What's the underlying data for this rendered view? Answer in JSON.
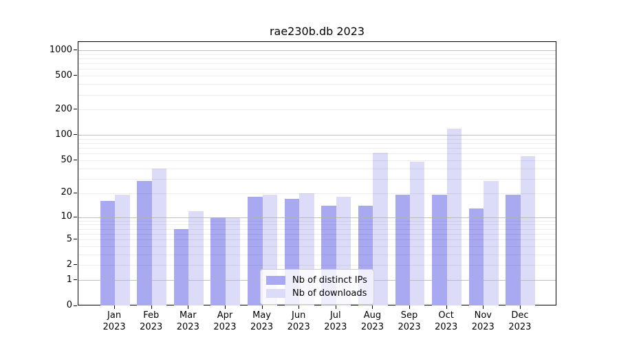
{
  "title": "rae230b.db 2023",
  "legend": {
    "position": "lower center",
    "items": [
      {
        "label": "Nb of distinct IPs",
        "color": "#a9a9f1"
      },
      {
        "label": "Nb of downloads",
        "color": "#dcdcf8"
      }
    ]
  },
  "axes": {
    "y_tick_labels": [
      "0",
      "1",
      "2",
      "5",
      "10",
      "20",
      "50",
      "100",
      "200",
      "500",
      "1000"
    ],
    "x_tick_months": [
      "Jan",
      "Feb",
      "Mar",
      "Apr",
      "May",
      "Jun",
      "Jul",
      "Aug",
      "Sep",
      "Oct",
      "Nov",
      "Dec"
    ],
    "x_tick_year": "2023"
  },
  "colors": {
    "series_distinct_ips": "#a9a9f1",
    "series_downloads": "#dcdcf8",
    "major_grid": "#b0b0b0",
    "minor_grid": "#e8e8e8",
    "axis": "#000000",
    "background": "#ffffff"
  },
  "chart_data": {
    "type": "bar",
    "title": "rae230b.db 2023",
    "categories": [
      "Jan 2023",
      "Feb 2023",
      "Mar 2023",
      "Apr 2023",
      "May 2023",
      "Jun 2023",
      "Jul 2023",
      "Aug 2023",
      "Sep 2023",
      "Oct 2023",
      "Nov 2023",
      "Dec 2023"
    ],
    "series": [
      {
        "name": "Nb of distinct IPs",
        "color": "#a9a9f1",
        "values": [
          16,
          28,
          7,
          10,
          18,
          17,
          14,
          14,
          19,
          19,
          13,
          19
        ]
      },
      {
        "name": "Nb of downloads",
        "color": "#dcdcf8",
        "values": [
          19,
          40,
          12,
          10,
          19,
          20,
          18,
          62,
          48,
          120,
          28,
          56
        ]
      }
    ],
    "xlabel": "",
    "ylabel": "",
    "yscale": "log1p",
    "ylim": [
      0,
      1250
    ],
    "yticks": [
      0,
      1,
      2,
      5,
      10,
      20,
      50,
      100,
      200,
      500,
      1000
    ],
    "major_gridlines": [
      1,
      10,
      100,
      1000
    ],
    "minor_gridlines": [
      2,
      3,
      4,
      5,
      6,
      7,
      8,
      9,
      20,
      30,
      40,
      50,
      60,
      70,
      80,
      90,
      200,
      300,
      400,
      500,
      600,
      700,
      800,
      900
    ],
    "grid": true,
    "legend_position": "lower center"
  }
}
